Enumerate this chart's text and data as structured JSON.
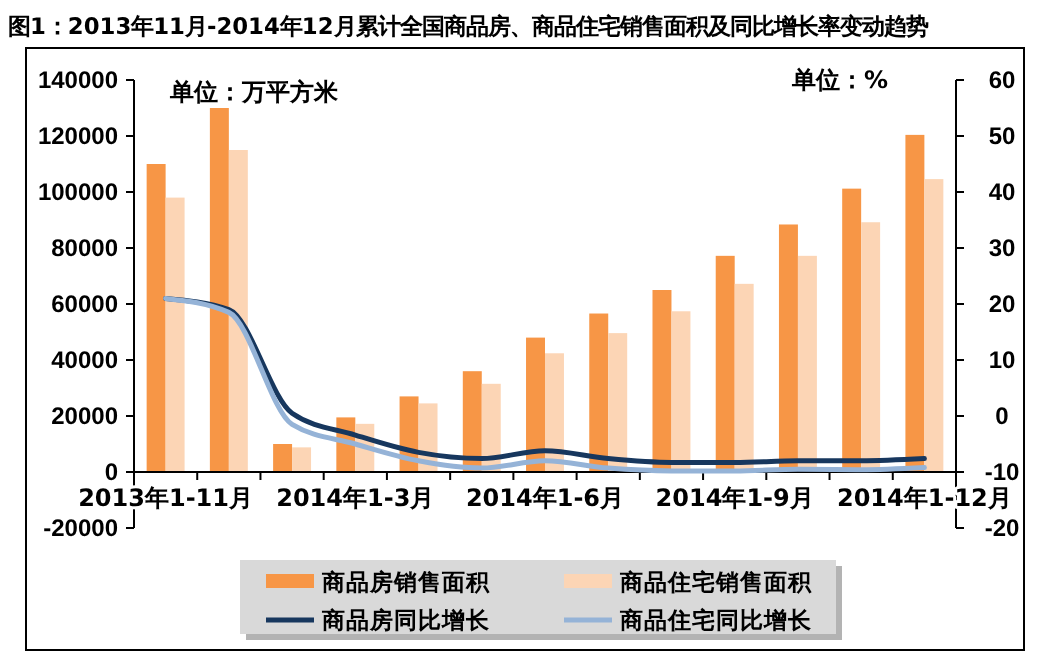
{
  "chart_data": {
    "type": "bar",
    "title": "图1：2013年11月-2014年12月累计全国商品房、商品住宅销售面积及同比增长率变动趋势",
    "annotations": [
      "单位：万平方米",
      "单位：%"
    ],
    "categories": [
      "2013年1-11月",
      null,
      null,
      "2014年1-3月",
      null,
      null,
      "2014年1-6月",
      null,
      null,
      "2014年1-9月",
      null,
      null,
      "2014年1-12月"
    ],
    "series": [
      {
        "name": "商品房销售面积",
        "color": "#f79646",
        "values": [
          110000,
          130000,
          10000,
          19500,
          27000,
          36000,
          48000,
          56600,
          65000,
          77200,
          88400,
          101200,
          120400
        ]
      },
      {
        "name": "商品住宅销售面积",
        "color": "#fcd5b5",
        "values": [
          98000,
          115000,
          8800,
          17200,
          24500,
          31500,
          42400,
          49600,
          57400,
          67200,
          77200,
          89200,
          104600
        ]
      },
      {
        "name": "商品房同比增长",
        "type": "line",
        "axis": "y2",
        "color": "#17375e",
        "values": [
          21,
          19,
          0.5,
          -3.4,
          -6.5,
          -7.6,
          -6.2,
          -7.6,
          -8.3,
          -8.3,
          -8,
          -8,
          -7.6
        ]
      },
      {
        "name": "商品住宅同比增长",
        "type": "line",
        "axis": "y2",
        "color": "#95b3d7",
        "values": [
          21,
          18.5,
          -1.5,
          -5,
          -8,
          -9.3,
          -8,
          -9.3,
          -9.8,
          -9.8,
          -9.5,
          -9.6,
          -9.2
        ]
      }
    ],
    "ylim": [
      -20000,
      140000
    ],
    "yticks": [
      -20000,
      0,
      20000,
      40000,
      60000,
      80000,
      100000,
      120000,
      140000
    ],
    "y2lim": [
      -20,
      60
    ],
    "y2ticks": [
      -20,
      -10,
      0,
      10,
      20,
      30,
      40,
      50,
      60
    ],
    "legend": "bottom",
    "grid": false
  }
}
